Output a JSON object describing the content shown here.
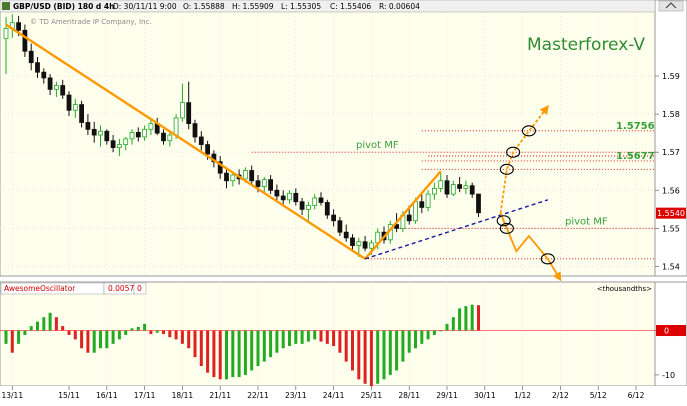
{
  "chart_data": [
    {
      "type": "candlestick",
      "header": {
        "symbol": "GBP/USD (BID) 180 d 4h",
        "date": "D: 30/11/11 9:00",
        "open": "O: 1.55888",
        "high": "H: 1.55909",
        "low": "L: 1.55305",
        "close": "C: 1.55406",
        "range": "R: 0.00604",
        "copyright": "© TD Ameritrade IP Company, Inc.",
        "watermark": "Masterforex-V"
      },
      "ylim": [
        1.5375,
        1.6068
      ],
      "y_ticks": [
        1.54,
        1.55,
        1.56,
        1.57,
        1.58,
        1.59
      ],
      "y_tick_labels": [
        "1.54",
        "1.55",
        "1.56",
        "1.57",
        "1.58",
        "1.59"
      ],
      "last_price": "1.5540",
      "x_labels": [
        {
          "label": "13/11",
          "i": 1
        },
        {
          "label": "15/11",
          "i": 10
        },
        {
          "label": "16/11",
          "i": 16
        },
        {
          "label": "17/11",
          "i": 22
        },
        {
          "label": "18/11",
          "i": 28
        },
        {
          "label": "21/11",
          "i": 34
        },
        {
          "label": "22/11",
          "i": 40
        },
        {
          "label": "23/11",
          "i": 46
        },
        {
          "label": "24/11",
          "i": 52
        },
        {
          "label": "25/11",
          "i": 58
        },
        {
          "label": "28/11",
          "i": 64
        },
        {
          "label": "29/11",
          "i": 70
        },
        {
          "label": "30/11",
          "i": 76
        },
        {
          "label": "1/12",
          "i": 82
        },
        {
          "label": "2/12",
          "i": 88
        },
        {
          "label": "5/12",
          "i": 94
        },
        {
          "label": "6/12",
          "i": 100
        }
      ],
      "candles": [
        {
          "o": 1.5998,
          "h": 1.6055,
          "l": 1.5905,
          "c": 1.6025
        },
        {
          "o": 1.6025,
          "h": 1.6062,
          "l": 1.6,
          "c": 1.604
        },
        {
          "o": 1.604,
          "h": 1.6058,
          "l": 1.6005,
          "c": 1.602
        },
        {
          "o": 1.602,
          "h": 1.6035,
          "l": 1.595,
          "c": 1.5965
        },
        {
          "o": 1.5965,
          "h": 1.5985,
          "l": 1.5915,
          "c": 1.5935
        },
        {
          "o": 1.5935,
          "h": 1.595,
          "l": 1.5895,
          "c": 1.591
        },
        {
          "o": 1.591,
          "h": 1.592,
          "l": 1.588,
          "c": 1.5895
        },
        {
          "o": 1.5895,
          "h": 1.5905,
          "l": 1.585,
          "c": 1.5865
        },
        {
          "o": 1.5865,
          "h": 1.5885,
          "l": 1.5845,
          "c": 1.5875
        },
        {
          "o": 1.5875,
          "h": 1.589,
          "l": 1.584,
          "c": 1.585
        },
        {
          "o": 1.585,
          "h": 1.586,
          "l": 1.5795,
          "c": 1.581
        },
        {
          "o": 1.581,
          "h": 1.584,
          "l": 1.579,
          "c": 1.5825
        },
        {
          "o": 1.5825,
          "h": 1.5835,
          "l": 1.5765,
          "c": 1.5778
        },
        {
          "o": 1.5778,
          "h": 1.58,
          "l": 1.5745,
          "c": 1.576
        },
        {
          "o": 1.576,
          "h": 1.578,
          "l": 1.5725,
          "c": 1.5745
        },
        {
          "o": 1.5745,
          "h": 1.577,
          "l": 1.5715,
          "c": 1.5755
        },
        {
          "o": 1.5755,
          "h": 1.576,
          "l": 1.572,
          "c": 1.573
        },
        {
          "o": 1.573,
          "h": 1.5745,
          "l": 1.57,
          "c": 1.5712
        },
        {
          "o": 1.5712,
          "h": 1.5735,
          "l": 1.569,
          "c": 1.572
        },
        {
          "o": 1.572,
          "h": 1.574,
          "l": 1.5705,
          "c": 1.5735
        },
        {
          "o": 1.5735,
          "h": 1.576,
          "l": 1.572,
          "c": 1.5752
        },
        {
          "o": 1.5752,
          "h": 1.5765,
          "l": 1.5728,
          "c": 1.574
        },
        {
          "o": 1.574,
          "h": 1.577,
          "l": 1.573,
          "c": 1.576
        },
        {
          "o": 1.576,
          "h": 1.5785,
          "l": 1.5745,
          "c": 1.5775
        },
        {
          "o": 1.5775,
          "h": 1.579,
          "l": 1.5745,
          "c": 1.575
        },
        {
          "o": 1.575,
          "h": 1.576,
          "l": 1.572,
          "c": 1.573
        },
        {
          "o": 1.573,
          "h": 1.5755,
          "l": 1.5715,
          "c": 1.5745
        },
        {
          "o": 1.5745,
          "h": 1.58,
          "l": 1.5735,
          "c": 1.579
        },
        {
          "o": 1.579,
          "h": 1.588,
          "l": 1.578,
          "c": 1.583
        },
        {
          "o": 1.583,
          "h": 1.5885,
          "l": 1.576,
          "c": 1.5775
        },
        {
          "o": 1.5775,
          "h": 1.5785,
          "l": 1.5725,
          "c": 1.574
        },
        {
          "o": 1.574,
          "h": 1.5755,
          "l": 1.5705,
          "c": 1.572
        },
        {
          "o": 1.572,
          "h": 1.573,
          "l": 1.568,
          "c": 1.5695
        },
        {
          "o": 1.5695,
          "h": 1.5705,
          "l": 1.566,
          "c": 1.5675
        },
        {
          "o": 1.5675,
          "h": 1.569,
          "l": 1.563,
          "c": 1.5645
        },
        {
          "o": 1.5645,
          "h": 1.566,
          "l": 1.5605,
          "c": 1.5625
        },
        {
          "o": 1.5625,
          "h": 1.565,
          "l": 1.561,
          "c": 1.564
        },
        {
          "o": 1.564,
          "h": 1.5655,
          "l": 1.5615,
          "c": 1.563
        },
        {
          "o": 1.563,
          "h": 1.566,
          "l": 1.562,
          "c": 1.5652
        },
        {
          "o": 1.5652,
          "h": 1.5665,
          "l": 1.5615,
          "c": 1.5625
        },
        {
          "o": 1.5625,
          "h": 1.564,
          "l": 1.5595,
          "c": 1.561
        },
        {
          "o": 1.561,
          "h": 1.5635,
          "l": 1.5595,
          "c": 1.5628
        },
        {
          "o": 1.5628,
          "h": 1.564,
          "l": 1.559,
          "c": 1.56
        },
        {
          "o": 1.56,
          "h": 1.5615,
          "l": 1.557,
          "c": 1.5585
        },
        {
          "o": 1.5585,
          "h": 1.56,
          "l": 1.556,
          "c": 1.5575
        },
        {
          "o": 1.5575,
          "h": 1.56,
          "l": 1.5565,
          "c": 1.5592
        },
        {
          "o": 1.5592,
          "h": 1.5605,
          "l": 1.556,
          "c": 1.557
        },
        {
          "o": 1.557,
          "h": 1.558,
          "l": 1.5535,
          "c": 1.555
        },
        {
          "o": 1.555,
          "h": 1.557,
          "l": 1.552,
          "c": 1.556
        },
        {
          "o": 1.556,
          "h": 1.559,
          "l": 1.555,
          "c": 1.558
        },
        {
          "o": 1.558,
          "h": 1.5595,
          "l": 1.556,
          "c": 1.5568
        },
        {
          "o": 1.5568,
          "h": 1.5575,
          "l": 1.5525,
          "c": 1.5535
        },
        {
          "o": 1.5535,
          "h": 1.555,
          "l": 1.5505,
          "c": 1.552
        },
        {
          "o": 1.552,
          "h": 1.553,
          "l": 1.548,
          "c": 1.549
        },
        {
          "o": 1.549,
          "h": 1.551,
          "l": 1.5465,
          "c": 1.5475
        },
        {
          "o": 1.5475,
          "h": 1.5485,
          "l": 1.544,
          "c": 1.5455
        },
        {
          "o": 1.5455,
          "h": 1.5475,
          "l": 1.5425,
          "c": 1.5465
        },
        {
          "o": 1.5465,
          "h": 1.548,
          "l": 1.544,
          "c": 1.5448
        },
        {
          "o": 1.5448,
          "h": 1.547,
          "l": 1.543,
          "c": 1.5462
        },
        {
          "o": 1.5462,
          "h": 1.55,
          "l": 1.5445,
          "c": 1.549
        },
        {
          "o": 1.549,
          "h": 1.5505,
          "l": 1.546,
          "c": 1.547
        },
        {
          "o": 1.547,
          "h": 1.552,
          "l": 1.546,
          "c": 1.551
        },
        {
          "o": 1.551,
          "h": 1.554,
          "l": 1.549,
          "c": 1.55
        },
        {
          "o": 1.55,
          "h": 1.5545,
          "l": 1.549,
          "c": 1.5535
        },
        {
          "o": 1.5535,
          "h": 1.556,
          "l": 1.551,
          "c": 1.552
        },
        {
          "o": 1.552,
          "h": 1.558,
          "l": 1.5512,
          "c": 1.557
        },
        {
          "o": 1.557,
          "h": 1.559,
          "l": 1.554,
          "c": 1.5555
        },
        {
          "o": 1.5555,
          "h": 1.56,
          "l": 1.5545,
          "c": 1.559
        },
        {
          "o": 1.559,
          "h": 1.562,
          "l": 1.5575,
          "c": 1.5605
        },
        {
          "o": 1.5605,
          "h": 1.565,
          "l": 1.5595,
          "c": 1.5625
        },
        {
          "o": 1.5625,
          "h": 1.564,
          "l": 1.558,
          "c": 1.559
        },
        {
          "o": 1.559,
          "h": 1.5625,
          "l": 1.5585,
          "c": 1.5615
        },
        {
          "o": 1.5615,
          "h": 1.5635,
          "l": 1.5595,
          "c": 1.5605
        },
        {
          "o": 1.5605,
          "h": 1.5625,
          "l": 1.559,
          "c": 1.5612
        },
        {
          "o": 1.5612,
          "h": 1.562,
          "l": 1.558,
          "c": 1.559
        },
        {
          "o": 1.559,
          "h": 1.5591,
          "l": 1.553,
          "c": 1.5541
        }
      ],
      "trend_lines": [
        {
          "color": "#ff9900",
          "style": "solid",
          "points": [
            [
              0,
              1.6035
            ],
            [
              57,
              1.542
            ]
          ]
        },
        {
          "color": "#ff9900",
          "style": "solid",
          "points": [
            [
              57,
              1.542
            ],
            [
              69,
              1.565
            ]
          ]
        },
        {
          "color": "#1a1aa8",
          "style": "dashed",
          "points": [
            [
              57,
              1.542
            ],
            [
              86,
              1.5575
            ]
          ]
        }
      ],
      "horizontal_levels": [
        {
          "price": 1.5756,
          "x_from": 66,
          "label": "1.5756"
        },
        {
          "price": 1.57,
          "x_from": 39,
          "label": "pivot MF"
        },
        {
          "price": 1.569,
          "x_from": 67,
          "label": ""
        },
        {
          "price": 1.5677,
          "x_from": 66,
          "label": "1.5677"
        },
        {
          "price": 1.5655,
          "x_from": 66,
          "label": ""
        },
        {
          "price": 1.55,
          "x_from": 62,
          "label": "pivot MF"
        },
        {
          "price": 1.542,
          "x_from": 57,
          "label": ""
        }
      ],
      "projection_up": [
        [
          78.5,
          1.554
        ],
        [
          79.5,
          1.5655
        ],
        [
          80.5,
          1.57
        ],
        [
          83,
          1.5755
        ],
        [
          86,
          1.582
        ]
      ],
      "projection_down": [
        [
          78.5,
          1.554
        ],
        [
          79.5,
          1.55
        ],
        [
          81,
          1.544
        ],
        [
          83,
          1.548
        ],
        [
          86,
          1.542
        ],
        [
          88,
          1.5365
        ]
      ],
      "circles": [
        {
          "i": 79.5,
          "price": 1.5655
        },
        {
          "i": 80.5,
          "price": 1.57
        },
        {
          "i": 83,
          "price": 1.5756
        },
        {
          "i": 79,
          "price": 1.552
        },
        {
          "i": 79.5,
          "price": 1.55
        },
        {
          "i": 86,
          "price": 1.542
        }
      ]
    },
    {
      "type": "bar",
      "title": "AwesomeOscillator",
      "value_label": "0.0057",
      "param_label": "0",
      "unit_label": "<thousandths>",
      "ylim": [
        -12.5,
        8
      ],
      "y_ticks": [
        0,
        -10
      ],
      "y_tick_labels": [
        "0",
        "-10"
      ],
      "values": [
        -3,
        -5,
        -3,
        -1,
        1,
        2,
        3,
        4,
        3,
        1,
        -1,
        -2,
        -4,
        -5,
        -5,
        -4,
        -4,
        -3,
        -2,
        -1,
        0.5,
        0.8,
        1.5,
        -0.8,
        -0.5,
        -0.8,
        -1.5,
        -2,
        -3,
        -4,
        -6,
        -8,
        -9.5,
        -10.5,
        -11,
        -11,
        -10.5,
        -10.5,
        -10,
        -9,
        -8,
        -7,
        -6,
        -5,
        -4,
        -3.5,
        -3,
        -3,
        -2.5,
        -2,
        -2.5,
        -3,
        -3.5,
        -5,
        -7,
        -9,
        -11,
        -12,
        -12.5,
        -12,
        -11,
        -10,
        -9,
        -7,
        -5,
        -4,
        -3,
        -2,
        -1,
        0,
        1.5,
        3,
        5,
        5.5,
        5.8,
        5.7
      ]
    }
  ]
}
